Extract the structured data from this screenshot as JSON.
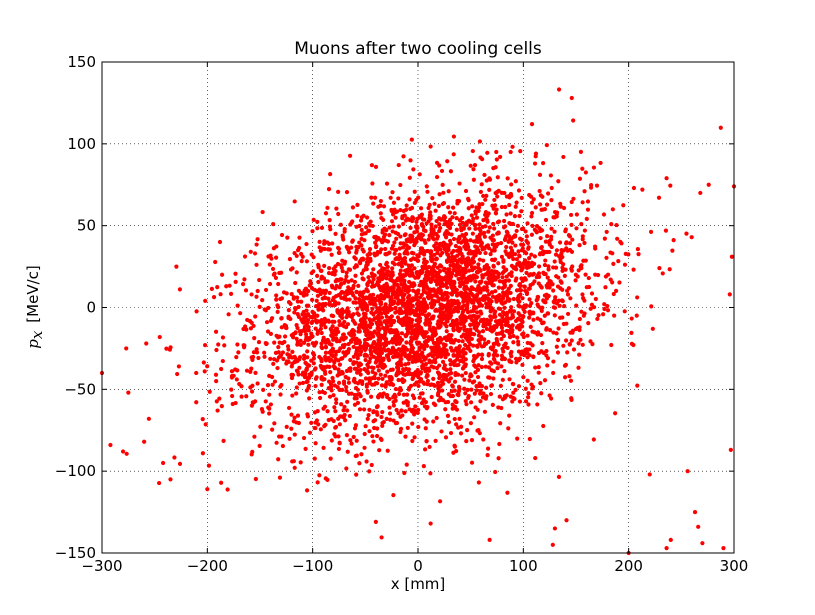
{
  "chart_data": {
    "type": "scatter",
    "title": "Muons after two cooling cells",
    "xlabel": "x [mm]",
    "ylabel_symbol": "p",
    "ylabel_subscript": "x",
    "ylabel_unit": "[MeV/c]",
    "xlim": [
      -300,
      300
    ],
    "ylim": [
      -150,
      150
    ],
    "xticks": [
      "−300",
      "−200",
      "−100",
      "0",
      "100",
      "200",
      "300"
    ],
    "xtick_values": [
      -300,
      -200,
      -100,
      0,
      100,
      200,
      300
    ],
    "yticks": [
      "−150",
      "−100",
      "−50",
      "0",
      "50",
      "100",
      "150"
    ],
    "ytick_values": [
      -150,
      -100,
      -50,
      0,
      50,
      100,
      150
    ],
    "grid": true,
    "marker_color": "#ff0000",
    "distribution": {
      "n_points": 4300,
      "mean_x": 5,
      "mean_y": -2,
      "std_x": 78,
      "std_y": 36,
      "correlation": 0.28,
      "seed": 12345
    },
    "points": [
      {
        "x": 146,
        "y": 128
      },
      {
        "x": -300,
        "y": -40
      },
      {
        "x": -292,
        "y": -84
      },
      {
        "x": -280,
        "y": -88
      },
      {
        "x": -277,
        "y": -25
      },
      {
        "x": -275,
        "y": -52
      },
      {
        "x": -260,
        "y": -82
      },
      {
        "x": -258,
        "y": -22
      },
      {
        "x": -242,
        "y": -95
      },
      {
        "x": -235,
        "y": -105
      },
      {
        "x": -227,
        "y": -36
      },
      {
        "x": -200,
        "y": -111
      },
      {
        "x": -188,
        "y": 40
      },
      {
        "x": -186,
        "y": 20
      },
      {
        "x": -40,
        "y": -131
      },
      {
        "x": 12,
        "y": -132
      },
      {
        "x": 68,
        "y": -142
      },
      {
        "x": 128,
        "y": -145
      },
      {
        "x": 130,
        "y": -135
      },
      {
        "x": 141,
        "y": -130
      },
      {
        "x": 200,
        "y": -150
      },
      {
        "x": 220,
        "y": -102
      },
      {
        "x": 236,
        "y": -147
      },
      {
        "x": 240,
        "y": -142
      },
      {
        "x": 256,
        "y": -100
      },
      {
        "x": 263,
        "y": -125
      },
      {
        "x": 266,
        "y": -134
      },
      {
        "x": 270,
        "y": -144
      },
      {
        "x": 290,
        "y": -147
      },
      {
        "x": 297,
        "y": -87
      },
      {
        "x": 300,
        "y": 74
      },
      {
        "x": 298,
        "y": 31
      },
      {
        "x": 296,
        "y": 8
      },
      {
        "x": 88,
        "y": 95
      },
      {
        "x": 138,
        "y": 92
      },
      {
        "x": 268,
        "y": 70
      },
      {
        "x": 276,
        "y": 75
      },
      {
        "x": 236,
        "y": 79
      },
      {
        "x": 205,
        "y": 73
      },
      {
        "x": 213,
        "y": 72
      },
      {
        "x": 185,
        "y": 60
      },
      {
        "x": 112,
        "y": 94
      }
    ]
  }
}
